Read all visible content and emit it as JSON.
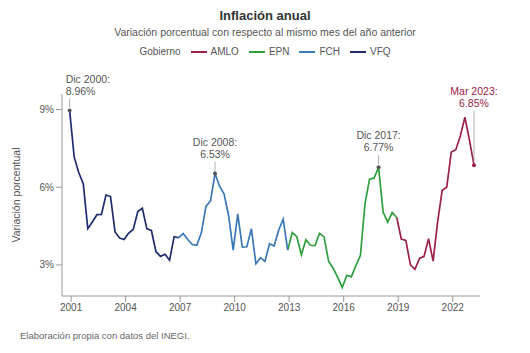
{
  "chart_data": {
    "type": "line",
    "title": "Inflación anual",
    "subtitle": "Variación porcentual con respecto al mismo mes del año anterior",
    "legend_title": "Gobierno",
    "y_label": "Variación porcentual",
    "source": "Elaboración propia con datos del INEGI.",
    "legend": "top",
    "grid": false,
    "xlim": [
      2000.5,
      2023.5
    ],
    "xticks": [
      2001,
      2004,
      2007,
      2010,
      2013,
      2016,
      2019,
      2022
    ],
    "ylim": [
      1.8,
      9.6
    ],
    "yticks": [
      {
        "value": 3,
        "label": "3%"
      },
      {
        "value": 6,
        "label": "6%"
      },
      {
        "value": 9,
        "label": "9%"
      }
    ],
    "series": [
      {
        "name": "AMLO",
        "color": "#9b2247",
        "x": [
          2018.92,
          2019.17,
          2019.42,
          2019.67,
          2019.92,
          2020.17,
          2020.42,
          2020.67,
          2020.92,
          2021.17,
          2021.42,
          2021.67,
          2021.92,
          2022.17,
          2022.42,
          2022.67,
          2022.92,
          2023.17
        ],
        "values": [
          4.83,
          4.0,
          3.95,
          3.0,
          2.83,
          3.25,
          3.33,
          4.01,
          3.15,
          4.67,
          5.88,
          6.0,
          7.36,
          7.45,
          7.99,
          8.7,
          7.82,
          6.85
        ]
      },
      {
        "name": "EPN",
        "color": "#2e9e3e",
        "x": [
          2012.92,
          2013.17,
          2013.42,
          2013.67,
          2013.92,
          2014.17,
          2014.42,
          2014.67,
          2014.92,
          2015.17,
          2015.42,
          2015.67,
          2015.92,
          2016.17,
          2016.42,
          2016.67,
          2016.92,
          2017.17,
          2017.42,
          2017.67,
          2017.92,
          2018.17,
          2018.42,
          2018.67,
          2018.92
        ],
        "values": [
          3.57,
          4.25,
          4.09,
          3.39,
          3.97,
          3.76,
          3.75,
          4.22,
          4.08,
          3.14,
          2.87,
          2.52,
          2.13,
          2.6,
          2.54,
          2.97,
          3.36,
          5.35,
          6.31,
          6.35,
          6.77,
          5.04,
          4.65,
          5.02,
          4.83
        ]
      },
      {
        "name": "FCH",
        "color": "#3a78b5",
        "x": [
          2006.92,
          2007.17,
          2007.42,
          2007.67,
          2007.92,
          2008.17,
          2008.42,
          2008.67,
          2008.92,
          2009.17,
          2009.42,
          2009.67,
          2009.92,
          2010.17,
          2010.42,
          2010.67,
          2010.92,
          2011.17,
          2011.42,
          2011.67,
          2011.92,
          2012.17,
          2012.42,
          2012.67,
          2012.92
        ],
        "values": [
          4.05,
          4.21,
          3.98,
          3.79,
          3.76,
          4.25,
          5.26,
          5.47,
          6.53,
          6.04,
          5.74,
          4.89,
          3.57,
          4.97,
          3.69,
          3.7,
          4.4,
          3.04,
          3.28,
          3.14,
          3.82,
          3.73,
          4.34,
          4.77,
          3.57
        ]
      },
      {
        "name": "VFQ",
        "color": "#1f2d6e",
        "x": [
          2000.92,
          2001.17,
          2001.42,
          2001.67,
          2001.92,
          2002.17,
          2002.42,
          2002.67,
          2002.92,
          2003.17,
          2003.42,
          2003.67,
          2003.92,
          2004.17,
          2004.42,
          2004.67,
          2004.92,
          2005.17,
          2005.42,
          2005.67,
          2005.92,
          2006.17,
          2006.42,
          2006.67,
          2006.92
        ],
        "values": [
          8.96,
          7.17,
          6.57,
          6.14,
          4.4,
          4.66,
          4.94,
          4.95,
          5.7,
          5.64,
          4.27,
          4.04,
          3.98,
          4.23,
          4.37,
          5.06,
          5.19,
          4.39,
          4.33,
          3.51,
          3.33,
          3.41,
          3.18,
          4.09,
          4.05
        ]
      }
    ],
    "annotations": [
      {
        "label": "Dic 2000:",
        "value_label": "8.96%",
        "x": 2000.92,
        "y": 8.96,
        "color": "#555555"
      },
      {
        "label": "Dic 2008:",
        "value_label": "6.53%",
        "x": 2008.92,
        "y": 6.53,
        "color": "#555555"
      },
      {
        "label": "Dic 2017:",
        "value_label": "6.77%",
        "x": 2017.92,
        "y": 6.77,
        "color": "#555555"
      },
      {
        "label": "Mar 2023:",
        "value_label": "6.85%",
        "x": 2023.17,
        "y": 6.85,
        "color": "#9b2247"
      }
    ]
  }
}
